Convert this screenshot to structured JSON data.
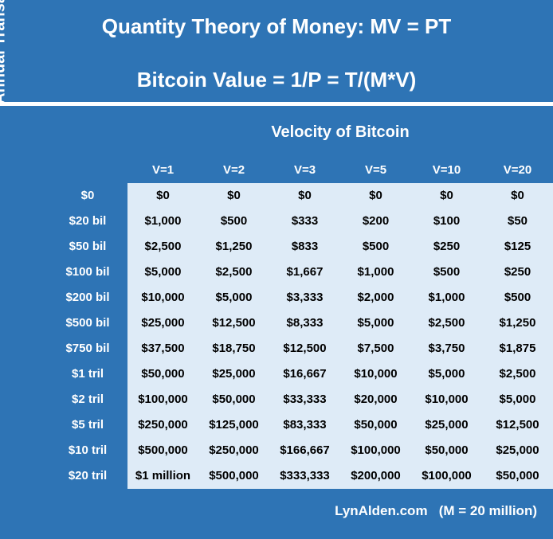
{
  "title_line1": "Quantity Theory of Money: MV = PT",
  "title_line2": "Bitcoin Value = 1/P = T/(M*V)",
  "column_axis_label": "Velocity of Bitcoin",
  "row_axis_label": "Annual Transaction Volume",
  "footer": "LynAlden.com   (M = 20 million)",
  "columns": [
    "V=1",
    "V=2",
    "V=3",
    "V=5",
    "V=10",
    "V=20"
  ],
  "rows": [
    {
      "label": "$0",
      "values": [
        "$0",
        "$0",
        "$0",
        "$0",
        "$0",
        "$0"
      ]
    },
    {
      "label": "$20 bil",
      "values": [
        "$1,000",
        "$500",
        "$333",
        "$200",
        "$100",
        "$50"
      ]
    },
    {
      "label": "$50 bil",
      "values": [
        "$2,500",
        "$1,250",
        "$833",
        "$500",
        "$250",
        "$125"
      ]
    },
    {
      "label": "$100 bil",
      "values": [
        "$5,000",
        "$2,500",
        "$1,667",
        "$1,000",
        "$500",
        "$250"
      ]
    },
    {
      "label": "$200 bil",
      "values": [
        "$10,000",
        "$5,000",
        "$3,333",
        "$2,000",
        "$1,000",
        "$500"
      ]
    },
    {
      "label": "$500 bil",
      "values": [
        "$25,000",
        "$12,500",
        "$8,333",
        "$5,000",
        "$2,500",
        "$1,250"
      ]
    },
    {
      "label": "$750 bil",
      "values": [
        "$37,500",
        "$18,750",
        "$12,500",
        "$7,500",
        "$3,750",
        "$1,875"
      ]
    },
    {
      "label": "$1 tril",
      "values": [
        "$50,000",
        "$25,000",
        "$16,667",
        "$10,000",
        "$5,000",
        "$2,500"
      ]
    },
    {
      "label": "$2 tril",
      "values": [
        "$100,000",
        "$50,000",
        "$33,333",
        "$20,000",
        "$10,000",
        "$5,000"
      ]
    },
    {
      "label": "$5 tril",
      "values": [
        "$250,000",
        "$125,000",
        "$83,333",
        "$50,000",
        "$25,000",
        "$12,500"
      ]
    },
    {
      "label": "$10 tril",
      "values": [
        "$500,000",
        "$250,000",
        "$166,667",
        "$100,000",
        "$50,000",
        "$25,000"
      ]
    },
    {
      "label": "$20 tril",
      "values": [
        "$1 million",
        "$500,000",
        "$333,333",
        "$200,000",
        "$100,000",
        "$50,000"
      ]
    }
  ],
  "colors": {
    "background": "#2e74b5",
    "table_fill": "#deebf7",
    "text_light": "#ffffff",
    "text_dark": "#000000"
  }
}
